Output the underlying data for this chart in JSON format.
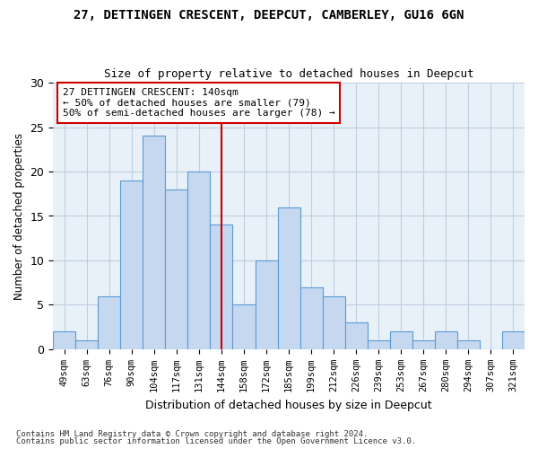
{
  "title": "27, DETTINGEN CRESCENT, DEEPCUT, CAMBERLEY, GU16 6GN",
  "subtitle": "Size of property relative to detached houses in Deepcut",
  "xlabel": "Distribution of detached houses by size in Deepcut",
  "ylabel": "Number of detached properties",
  "categories": [
    "49sqm",
    "63sqm",
    "76sqm",
    "90sqm",
    "104sqm",
    "117sqm",
    "131sqm",
    "144sqm",
    "158sqm",
    "172sqm",
    "185sqm",
    "199sqm",
    "212sqm",
    "226sqm",
    "239sqm",
    "253sqm",
    "267sqm",
    "280sqm",
    "294sqm",
    "307sqm",
    "321sqm"
  ],
  "values": [
    2,
    1,
    6,
    19,
    24,
    18,
    20,
    14,
    5,
    10,
    16,
    7,
    6,
    3,
    1,
    2,
    1,
    2,
    1,
    0,
    2
  ],
  "bar_color": "#c5d8f0",
  "bar_edge_color": "#5b9bd5",
  "vline_index": 7,
  "vline_color": "#cc0000",
  "annotation_text": "27 DETTINGEN CRESCENT: 140sqm\n← 50% of detached houses are smaller (79)\n50% of semi-detached houses are larger (78) →",
  "annotation_box_color": "#ffffff",
  "annotation_box_edge_color": "#cc0000",
  "ylim": [
    0,
    30
  ],
  "yticks": [
    0,
    5,
    10,
    15,
    20,
    25,
    30
  ],
  "footer_line1": "Contains HM Land Registry data © Crown copyright and database right 2024.",
  "footer_line2": "Contains public sector information licensed under the Open Government Licence v3.0.",
  "background_color": "#ffffff",
  "axes_background_color": "#e8f0f8",
  "grid_color": "#c0cfe0"
}
